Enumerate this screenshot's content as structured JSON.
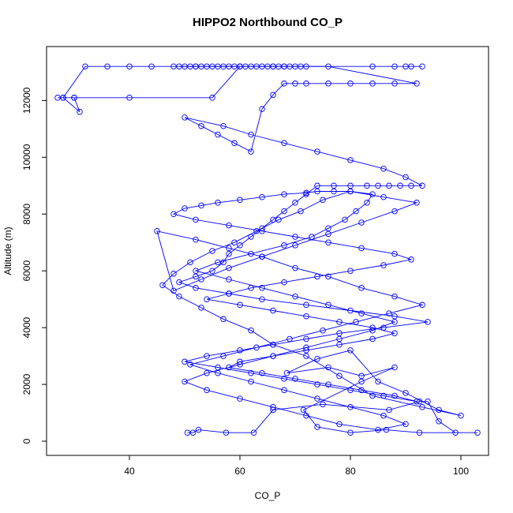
{
  "chart_data": {
    "type": "scatter",
    "title": "HIPPO2 Northbound CO_P",
    "xlabel": "CO_P",
    "ylabel": "Altitude (m)",
    "xlim": [
      25,
      105
    ],
    "ylim": [
      -500,
      13900
    ],
    "x_ticks": [
      40,
      60,
      80,
      100
    ],
    "y_ticks": [
      0,
      2000,
      4000,
      6000,
      8000,
      10000,
      12000
    ],
    "grid": false,
    "legend": "none",
    "series_color": "#0000ff",
    "marker": "open-circle",
    "connect_points": true,
    "series": [
      {
        "x": [
          50.5,
          51.5,
          52.5,
          57.5,
          62.5,
          66,
          75,
          87,
          92.5,
          94,
          96,
          99,
          103,
          92.5,
          86.5,
          80,
          74,
          71.5,
          82,
          88,
          82,
          76,
          68.5,
          74,
          80,
          85,
          90,
          96,
          100,
          93,
          84,
          78,
          72,
          66,
          62,
          57,
          53,
          49,
          46,
          48,
          51,
          55,
          59,
          63,
          67,
          71,
          75,
          80,
          86,
          92,
          88,
          82,
          76,
          70,
          64,
          58,
          53,
          48,
          45,
          52,
          58,
          64,
          70,
          76,
          82,
          88,
          93,
          87,
          81,
          75,
          69,
          63,
          57,
          51,
          56,
          62,
          68,
          74,
          80,
          86,
          90,
          85,
          78,
          72,
          66,
          60,
          54,
          50,
          54,
          60,
          66,
          72,
          78,
          84,
          88,
          82,
          76,
          70,
          64,
          58,
          52,
          56,
          62,
          68,
          73,
          76,
          79,
          81,
          83,
          84,
          80,
          77,
          74,
          72,
          68,
          64,
          60,
          56,
          53,
          50,
          48,
          52,
          58,
          64,
          70,
          76,
          82,
          88,
          91,
          86,
          80,
          74,
          68,
          62,
          58,
          54,
          60,
          66,
          72,
          78,
          84,
          88,
          84,
          78,
          72,
          66,
          60,
          58,
          64,
          70,
          76,
          82,
          88,
          92,
          86,
          80,
          74,
          68,
          62,
          56,
          50,
          54,
          60,
          66,
          72,
          78,
          86,
          94,
          88,
          80,
          72,
          64,
          58,
          52,
          49,
          52,
          55,
          57,
          58,
          60,
          62,
          64,
          66,
          68,
          70,
          72,
          74,
          77,
          80,
          83,
          85,
          87,
          89,
          91,
          93,
          90,
          86,
          80,
          74,
          68,
          62,
          57,
          50,
          53,
          56,
          59,
          62,
          64,
          66,
          68,
          70,
          72,
          76,
          80,
          84,
          88,
          92,
          76,
          68,
          60,
          52,
          48,
          44,
          40,
          36,
          32,
          28,
          27,
          30,
          31,
          28,
          30,
          40,
          55,
          60,
          66
        ],
        "y": [
          300,
          300,
          400,
          300,
          300,
          1100,
          1300,
          1100,
          1400,
          1400,
          700,
          300,
          300,
          300,
          400,
          300,
          500,
          1100,
          2100,
          2600,
          2300,
          2600,
          2400,
          2900,
          3200,
          2100,
          1700,
          1100,
          900,
          1200,
          1600,
          2300,
          3000,
          3400,
          3900,
          4300,
          4700,
          5100,
          5500,
          5900,
          6300,
          6700,
          7000,
          7400,
          7800,
          8100,
          8500,
          8800,
          8600,
          8400,
          8100,
          7700,
          7300,
          6900,
          6500,
          6100,
          5700,
          5300,
          7400,
          7100,
          6800,
          6500,
          6100,
          5800,
          5400,
          5100,
          4800,
          4500,
          4200,
          3900,
          3600,
          3300,
          3000,
          2700,
          2400,
          2100,
          1800,
          1500,
          1200,
          900,
          600,
          400,
          600,
          900,
          1200,
          1500,
          1800,
          2100,
          2400,
          2700,
          3000,
          3300,
          3600,
          3900,
          4200,
          4500,
          4800,
          5100,
          5400,
          5700,
          6000,
          6300,
          6600,
          6900,
          7200,
          7500,
          7800,
          8100,
          8400,
          8700,
          8800,
          8800,
          8800,
          8750,
          8700,
          8600,
          8500,
          8400,
          8300,
          8200,
          8000,
          7800,
          7600,
          7400,
          7200,
          7000,
          6800,
          6600,
          6400,
          6200,
          6000,
          5800,
          5600,
          5400,
          5200,
          5000,
          4800,
          4600,
          4400,
          4200,
          4000,
          3800,
          3600,
          3400,
          3200,
          3000,
          2800,
          2600,
          2400,
          2200,
          2000,
          1800,
          1600,
          1400,
          1600,
          1800,
          2000,
          2200,
          2400,
          2600,
          2800,
          3000,
          3200,
          3400,
          3600,
          3800,
          4000,
          4200,
          4400,
          4600,
          4800,
          5000,
          5200,
          5400,
          5600,
          5800,
          6000,
          6300,
          6600,
          6900,
          7200,
          7500,
          7800,
          8100,
          8400,
          8700,
          9000,
          9000,
          9000,
          9000,
          9000,
          9000,
          9000,
          9000,
          9000,
          9300,
          9600,
          9900,
          10200,
          10500,
          10800,
          11100,
          11400,
          11100,
          10800,
          10500,
          10200,
          11700,
          12200,
          12600,
          12600,
          12600,
          12600,
          12600,
          12600,
          12600,
          12600,
          13200,
          13200,
          13200,
          13200,
          13200,
          13200,
          13200,
          13200,
          13200,
          12100,
          12100,
          12100,
          11600,
          12100,
          12100,
          12100,
          12100,
          13200,
          13200
        ]
      },
      {
        "x": [
          49,
          50,
          51,
          52,
          53,
          54,
          55,
          56,
          57,
          58,
          59,
          60,
          61,
          62,
          63,
          64,
          65,
          66,
          67,
          68,
          69,
          70,
          71,
          72,
          84,
          88,
          90,
          91,
          93
        ],
        "y": [
          13200,
          13200,
          13200,
          13200,
          13200,
          13200,
          13200,
          13200,
          13200,
          13200,
          13200,
          13200,
          13200,
          13200,
          13200,
          13200,
          13200,
          13200,
          13200,
          13200,
          13200,
          13200,
          13200,
          13200,
          13200,
          13200,
          13200,
          13200,
          13200
        ]
      }
    ]
  }
}
